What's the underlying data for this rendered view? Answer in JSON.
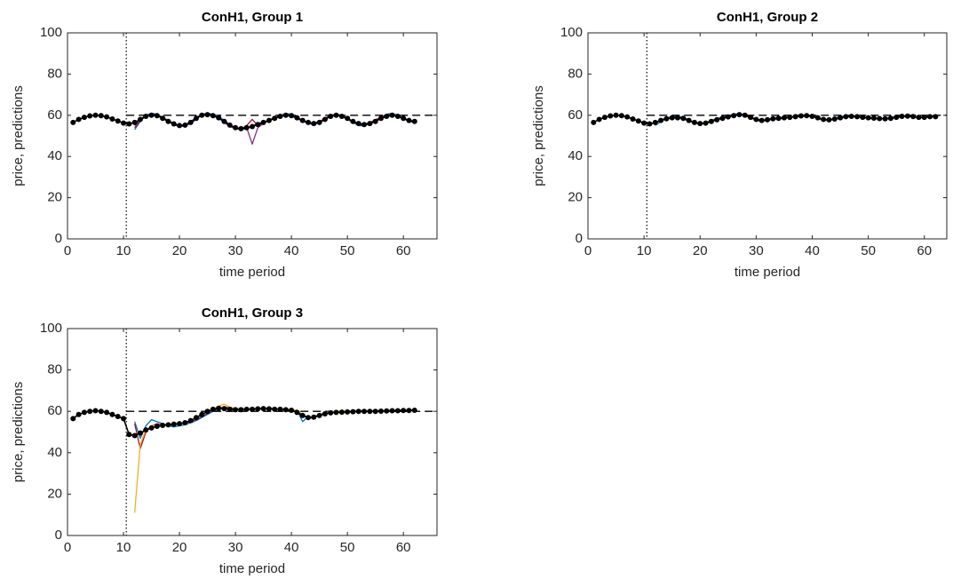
{
  "chart_data": [
    {
      "type": "line",
      "title": "ConH1, Group 1",
      "x_label": "time period",
      "y_label": "price, predictions",
      "xlim": [
        0,
        66
      ],
      "ylim": [
        0,
        100
      ],
      "xticks": [
        0,
        10,
        20,
        30,
        40,
        50,
        60
      ],
      "yticks": [
        0,
        20,
        40,
        60,
        80,
        100
      ],
      "hline": 60,
      "vline": 10.5,
      "x": [
        1,
        2,
        3,
        4,
        5,
        6,
        7,
        8,
        9,
        10,
        11,
        12,
        13,
        14,
        15,
        16,
        17,
        18,
        19,
        20,
        21,
        22,
        23,
        24,
        25,
        26,
        27,
        28,
        29,
        30,
        31,
        32,
        33,
        34,
        35,
        36,
        37,
        38,
        39,
        40,
        41,
        42,
        43,
        44,
        45,
        46,
        47,
        48,
        49,
        50,
        51,
        52,
        53,
        54,
        55,
        56,
        57,
        58,
        59,
        60,
        61,
        62
      ],
      "series": [
        {
          "color": "#0072BD",
          "marker": false,
          "values": [
            null,
            null,
            null,
            null,
            null,
            null,
            null,
            null,
            null,
            null,
            null,
            53,
            57,
            60,
            61,
            60.5,
            59,
            57.5,
            56,
            54.5,
            54.8,
            56,
            58,
            60.5,
            61,
            60.5,
            59.5,
            57.5,
            55.5,
            53.5,
            53,
            53.5,
            55,
            56,
            56.8,
            57.5,
            58.5,
            60,
            60.8,
            60.5,
            59,
            57.5,
            56,
            55.5,
            56.5,
            58.5,
            60,
            60.5,
            60,
            58.5,
            56.5,
            55,
            54.8,
            56,
            57.5,
            59,
            60.5,
            61,
            60,
            58.5,
            57,
            56.5
          ]
        },
        {
          "color": "#7E2F8E",
          "marker": false,
          "values": [
            null,
            null,
            null,
            null,
            null,
            null,
            null,
            null,
            null,
            null,
            null,
            55,
            58,
            60,
            60.5,
            60,
            58.8,
            57,
            55.5,
            54.5,
            55,
            57,
            59,
            60.5,
            60.5,
            59.8,
            58.5,
            56.5,
            54.5,
            53.5,
            53,
            54,
            46,
            54,
            56,
            57.5,
            58.8,
            59.8,
            60.2,
            59.5,
            58.5,
            57,
            56.3,
            56,
            56.8,
            58.5,
            60,
            60.3,
            59.5,
            58,
            56.5,
            55.5,
            55,
            56.2,
            57.5,
            59,
            60,
            60.3,
            59.5,
            58.2,
            57.2,
            56.8
          ]
        },
        {
          "color": "#A2142F",
          "marker": false,
          "values": [
            null,
            null,
            null,
            null,
            null,
            null,
            null,
            null,
            null,
            null,
            null,
            54,
            57.5,
            59.5,
            60.5,
            60.2,
            59,
            57.2,
            55.8,
            55,
            55.5,
            56.8,
            58.8,
            60.2,
            60.6,
            60,
            58.8,
            57,
            55,
            54,
            53.2,
            55,
            58,
            55,
            56.5,
            57.8,
            58.8,
            59.8,
            60.3,
            59.8,
            58.8,
            57.2,
            56.5,
            56.2,
            57,
            58.5,
            59.8,
            60.5,
            59.8,
            58.5,
            56.8,
            55.8,
            55.5,
            56.5,
            57.8,
            59.2,
            60.2,
            60.6,
            59.8,
            58.5,
            57.5,
            57
          ]
        },
        {
          "color": "#000000",
          "marker": true,
          "values": [
            56.5,
            58,
            59,
            59.7,
            60,
            59.8,
            59.2,
            58.2,
            57.2,
            56.2,
            55.8,
            56.5,
            58,
            59.5,
            60,
            59.8,
            58.5,
            57,
            55.8,
            55,
            55.2,
            56.5,
            58.5,
            60,
            60.3,
            59.8,
            58.8,
            57,
            55.2,
            54,
            53.5,
            54,
            54.5,
            55.5,
            56.5,
            57.5,
            58.5,
            59.5,
            60,
            59.8,
            58.8,
            57.5,
            56.5,
            56,
            56.5,
            58,
            59.5,
            60,
            59.5,
            58.5,
            57,
            56,
            55.5,
            56,
            57,
            58.5,
            59.5,
            60,
            59.5,
            58.5,
            57.5,
            57
          ]
        }
      ]
    },
    {
      "type": "line",
      "title": "ConH1, Group 2",
      "x_label": "time period",
      "y_label": "price, predictions",
      "xlim": [
        0,
        64
      ],
      "ylim": [
        0,
        100
      ],
      "xticks": [
        0,
        10,
        20,
        30,
        40,
        50,
        60
      ],
      "yticks": [
        0,
        20,
        40,
        60,
        80,
        100
      ],
      "hline": 60,
      "vline": 10.5,
      "x": [
        1,
        2,
        3,
        4,
        5,
        6,
        7,
        8,
        9,
        10,
        11,
        12,
        13,
        14,
        15,
        16,
        17,
        18,
        19,
        20,
        21,
        22,
        23,
        24,
        25,
        26,
        27,
        28,
        29,
        30,
        31,
        32,
        33,
        34,
        35,
        36,
        37,
        38,
        39,
        40,
        41,
        42,
        43,
        44,
        45,
        46,
        47,
        48,
        49,
        50,
        51,
        52,
        53,
        54,
        55,
        56,
        57,
        58,
        59,
        60,
        61,
        62
      ],
      "series": [
        {
          "color": "#0072BD",
          "marker": false,
          "values": [
            null,
            null,
            null,
            null,
            null,
            null,
            null,
            null,
            null,
            null,
            null,
            55,
            57,
            58.5,
            59.5,
            59.5,
            59,
            57.8,
            56.2,
            55.8,
            56.5,
            57.5,
            58.5,
            59,
            59.8,
            60.5,
            60.8,
            60.2,
            58.8,
            57.5,
            57,
            58,
            58.8,
            58.8,
            59,
            59.2,
            59.5,
            60,
            60.2,
            59.5,
            58.5,
            57.5,
            57.5,
            58.5,
            59.3,
            59.8,
            59.8,
            59.3,
            58.8,
            58.5,
            58.2,
            58.2,
            58.5,
            59,
            59.5,
            59.8,
            59.8,
            59.2,
            58.7,
            59,
            59.5,
            59.3
          ]
        },
        {
          "color": "#7E2F8E",
          "marker": false,
          "values": [
            null,
            null,
            null,
            null,
            null,
            null,
            null,
            null,
            null,
            null,
            null,
            56,
            57.8,
            58.6,
            59,
            59,
            58.2,
            57.2,
            56.3,
            56,
            56.5,
            57.2,
            58,
            58.8,
            59.5,
            60,
            60.5,
            59.8,
            58.8,
            57.8,
            57.2,
            57.5,
            58,
            58.3,
            58.6,
            59,
            59.2,
            59.5,
            59.6,
            59.3,
            58.6,
            57.8,
            57.6,
            58,
            58.6,
            59,
            59.3,
            59.1,
            58.9,
            58.6,
            58.4,
            58.3,
            58.2,
            58.4,
            58.8,
            59.3,
            59.5,
            59.3,
            59,
            58.9,
            59.1,
            59.2
          ]
        },
        {
          "color": "#A2142F",
          "marker": false,
          "values": [
            null,
            null,
            null,
            null,
            null,
            null,
            null,
            null,
            null,
            null,
            null,
            56.5,
            57.5,
            58.3,
            58.8,
            58.9,
            58.6,
            57.6,
            56.6,
            56.1,
            56.3,
            57.1,
            57.9,
            58.6,
            59.3,
            59.9,
            60.4,
            60.1,
            59.1,
            58.1,
            57.6,
            57.9,
            58.4,
            58.6,
            58.9,
            59.1,
            59.4,
            59.8,
            59.9,
            59.6,
            58.9,
            58.1,
            57.9,
            58.3,
            58.9,
            59.4,
            59.6,
            59.4,
            59.1,
            58.9,
            58.7,
            58.5,
            58.4,
            58.6,
            59.1,
            59.6,
            59.7,
            59.5,
            59.1,
            59.1,
            59.4,
            59.3
          ]
        },
        {
          "color": "#000000",
          "marker": true,
          "values": [
            56.5,
            58,
            59,
            59.7,
            60,
            59.8,
            59.2,
            58.2,
            57.2,
            56.2,
            55.8,
            56.5,
            57.5,
            58.3,
            58.8,
            58.8,
            58.5,
            57.5,
            56.5,
            56,
            56.2,
            57,
            57.8,
            58.5,
            59.2,
            59.8,
            60.3,
            60,
            59,
            58,
            57.5,
            57.8,
            58.3,
            58.5,
            58.8,
            59,
            59.3,
            59.7,
            59.8,
            59.5,
            58.8,
            58,
            57.8,
            58.2,
            58.8,
            59.3,
            59.5,
            59.3,
            59,
            58.8,
            58.6,
            58.4,
            58.3,
            58.5,
            59,
            59.5,
            59.6,
            59.4,
            59,
            59,
            59.3,
            59.3
          ]
        }
      ]
    },
    {
      "type": "line",
      "title": "ConH1, Group 3",
      "x_label": "time period",
      "y_label": "price, predictions",
      "xlim": [
        0,
        66
      ],
      "ylim": [
        0,
        100
      ],
      "xticks": [
        0,
        10,
        20,
        30,
        40,
        50,
        60
      ],
      "yticks": [
        0,
        20,
        40,
        60,
        80,
        100
      ],
      "hline": 60,
      "vline": 10.5,
      "x": [
        1,
        2,
        3,
        4,
        5,
        6,
        7,
        8,
        9,
        10,
        11,
        12,
        13,
        14,
        15,
        16,
        17,
        18,
        19,
        20,
        21,
        22,
        23,
        24,
        25,
        26,
        27,
        28,
        29,
        30,
        31,
        32,
        33,
        34,
        35,
        36,
        37,
        38,
        39,
        40,
        41,
        42,
        43,
        44,
        45,
        46,
        47,
        48,
        49,
        50,
        51,
        52,
        53,
        54,
        55,
        56,
        57,
        58,
        59,
        60,
        61,
        62
      ],
      "series": [
        {
          "color": "#0072BD",
          "marker": false,
          "values": [
            null,
            null,
            null,
            null,
            null,
            null,
            null,
            null,
            null,
            null,
            null,
            55,
            47,
            53,
            56,
            55,
            54,
            53,
            52.5,
            53,
            53.5,
            54.5,
            55.5,
            57,
            58.5,
            60,
            61,
            62,
            61.8,
            61.3,
            61,
            61,
            61.2,
            61.3,
            61.5,
            61.5,
            61.3,
            61.2,
            61,
            60.8,
            60.5,
            55,
            57.5,
            57,
            58.5,
            59.5,
            59.8,
            60,
            60,
            60.2,
            60.3,
            60.4,
            60.3,
            60.2,
            60.3,
            60.4,
            60.5,
            60.5,
            60.3,
            60.4,
            60.6,
            60.5
          ]
        },
        {
          "color": "#A2142F",
          "marker": false,
          "values": [
            null,
            null,
            null,
            null,
            null,
            null,
            null,
            null,
            null,
            null,
            null,
            54,
            42,
            50,
            53,
            54,
            53.5,
            53.3,
            53.6,
            54,
            54.3,
            55,
            56,
            57.5,
            59,
            60.5,
            61.5,
            62,
            61.6,
            61.2,
            61,
            61,
            61.1,
            61.2,
            61.3,
            61.4,
            61.3,
            61.1,
            61,
            60.8,
            60.3,
            58,
            56.5,
            57,
            58,
            59,
            59.5,
            59.7,
            59.8,
            59.9,
            60,
            60.1,
            60.1,
            60.1,
            60.2,
            60.3,
            60.4,
            60.4,
            60.5,
            60.5,
            60.6,
            60.6
          ]
        },
        {
          "color": "#EDB120",
          "marker": false,
          "values": [
            null,
            null,
            null,
            null,
            null,
            null,
            null,
            null,
            null,
            null,
            null,
            11,
            44,
            51,
            53,
            53.5,
            53.5,
            53.8,
            54,
            54.2,
            54.5,
            55.5,
            56.5,
            58,
            59.5,
            61,
            62.5,
            63.5,
            62,
            61.5,
            61.2,
            61.2,
            61.3,
            61.5,
            61.5,
            61.5,
            61.3,
            61.2,
            61,
            60.9,
            60.5,
            58.5,
            57,
            57.5,
            58.5,
            59.2,
            59.8,
            60,
            60.2,
            60.1,
            60.1,
            60.2,
            60.2,
            60.3,
            60.4,
            60.5,
            60.4,
            60.5,
            60.6,
            60.5,
            60.7,
            60.2
          ]
        },
        {
          "color": "#000000",
          "marker": true,
          "values": [
            56.5,
            58.5,
            59.5,
            60,
            60.3,
            60,
            59.5,
            58.5,
            57.5,
            56.5,
            48.8,
            48.3,
            49.5,
            51,
            52,
            52.8,
            53.2,
            53.5,
            53.8,
            54,
            54.5,
            55.5,
            57,
            58.5,
            60,
            61,
            61.5,
            61.3,
            61,
            60.8,
            60.8,
            61,
            61,
            61.2,
            61.3,
            61.2,
            61,
            61,
            60.8,
            60.5,
            59.5,
            58,
            57,
            57.2,
            58,
            58.8,
            59.3,
            59.5,
            59.6,
            59.7,
            59.8,
            60,
            60,
            60,
            60,
            60.1,
            60.2,
            60.3,
            60.3,
            60.4,
            60.4,
            60.5
          ]
        }
      ]
    }
  ]
}
